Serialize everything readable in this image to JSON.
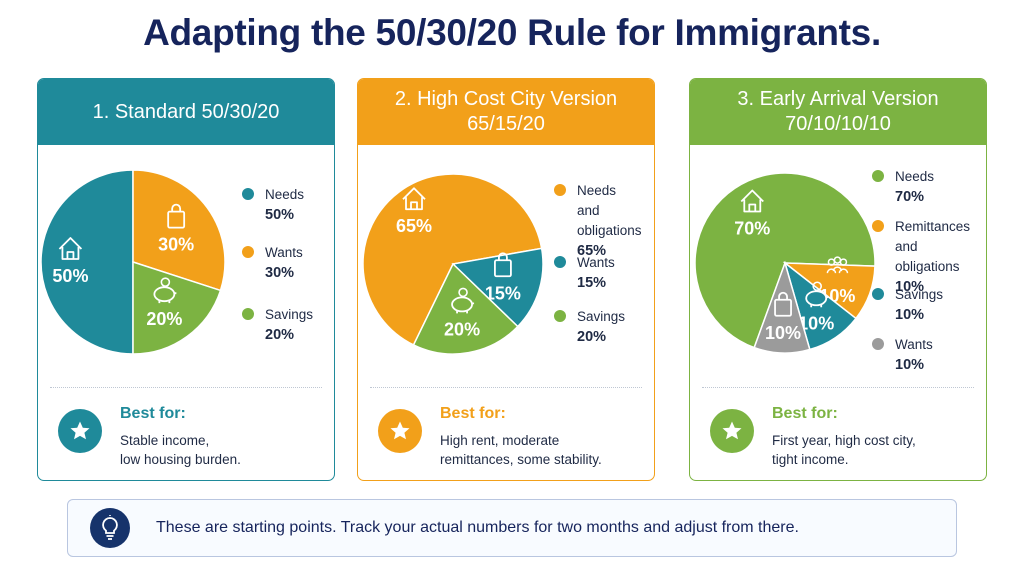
{
  "title": "Adapting the 50/30/20 Rule for Immigrants.",
  "colors": {
    "teal": "#1f8a9a",
    "orange": "#f2a01a",
    "green": "#7cb342",
    "gray": "#9b9b9b",
    "navy": "#16245c"
  },
  "cards": [
    {
      "heading_line1": "1. Standard 50/30/20",
      "heading_line2": "",
      "accent": "#1f8a9a",
      "pie": [
        {
          "name": "Needs",
          "value": 50,
          "label": "50%",
          "color": "#1f8a9a",
          "icon": "house-icon"
        },
        {
          "name": "Wants",
          "value": 30,
          "label": "30%",
          "color": "#f2a01a",
          "icon": "shopping-bag-icon"
        },
        {
          "name": "Savings",
          "value": 20,
          "label": "20%",
          "color": "#7cb342",
          "icon": "piggy-bank-icon"
        }
      ],
      "legend": [
        {
          "name": "Needs",
          "pct": "50%",
          "color": "#1f8a9a"
        },
        {
          "name": "Wants",
          "pct": "30%",
          "color": "#f2a01a"
        },
        {
          "name": "Savings",
          "pct": "20%",
          "color": "#7cb342"
        }
      ],
      "best_label": "Best for:",
      "best_desc_line1": "Stable income,",
      "best_desc_line2": "low housing burden."
    },
    {
      "heading_line1": "2. High Cost City Version",
      "heading_line2": "65/15/20",
      "accent": "#f2a01a",
      "pie": [
        {
          "name": "Needs and obligations",
          "value": 65,
          "label": "65%",
          "color": "#f2a01a",
          "icon": "house-icon"
        },
        {
          "name": "Wants",
          "value": 15,
          "label": "15%",
          "color": "#1f8a9a",
          "icon": "shopping-bag-icon"
        },
        {
          "name": "Savings",
          "value": 20,
          "label": "20%",
          "color": "#7cb342",
          "icon": "piggy-bank-icon"
        }
      ],
      "legend": [
        {
          "name": "Needs and obligations",
          "name_line1": "Needs and",
          "name_line2": "obligations",
          "pct": "65%",
          "color": "#f2a01a"
        },
        {
          "name": "Wants",
          "pct": "15%",
          "color": "#1f8a9a"
        },
        {
          "name": "Savings",
          "pct": "20%",
          "color": "#7cb342"
        }
      ],
      "best_label": "Best for:",
      "best_desc_line1": "High rent, moderate",
      "best_desc_line2": "remittances, some stability."
    },
    {
      "heading_line1": "3. Early Arrival Version",
      "heading_line2": "70/10/10/10",
      "accent": "#7cb342",
      "pie": [
        {
          "name": "Needs",
          "value": 70,
          "label": "70%",
          "color": "#7cb342",
          "icon": "house-icon"
        },
        {
          "name": "Remittances and obligations",
          "value": 10,
          "label": "10%",
          "color": "#f2a01a",
          "icon": "people-icon"
        },
        {
          "name": "Savings",
          "value": 10,
          "label": "10%",
          "color": "#1f8a9a",
          "icon": "piggy-bank-icon"
        },
        {
          "name": "Wants",
          "value": 10,
          "label": "10%",
          "color": "#9b9b9b",
          "icon": "shopping-bag-icon"
        }
      ],
      "legend": [
        {
          "name": "Needs",
          "pct": "70%",
          "color": "#7cb342"
        },
        {
          "name": "Remittances and obligations",
          "name_line1": "Remittances",
          "name_line2": "and obligations",
          "pct": "10%",
          "color": "#f2a01a"
        },
        {
          "name": "Savings",
          "pct": "10%",
          "color": "#1f8a9a"
        },
        {
          "name": "Wants",
          "pct": "10%",
          "color": "#9b9b9b"
        }
      ],
      "best_label": "Best for:",
      "best_desc_line1": "First year, high cost city,",
      "best_desc_line2": "tight income."
    }
  ],
  "tip": {
    "icon": "lightbulb-icon",
    "text": "These are starting points. Track your actual numbers for two months and adjust from there."
  }
}
